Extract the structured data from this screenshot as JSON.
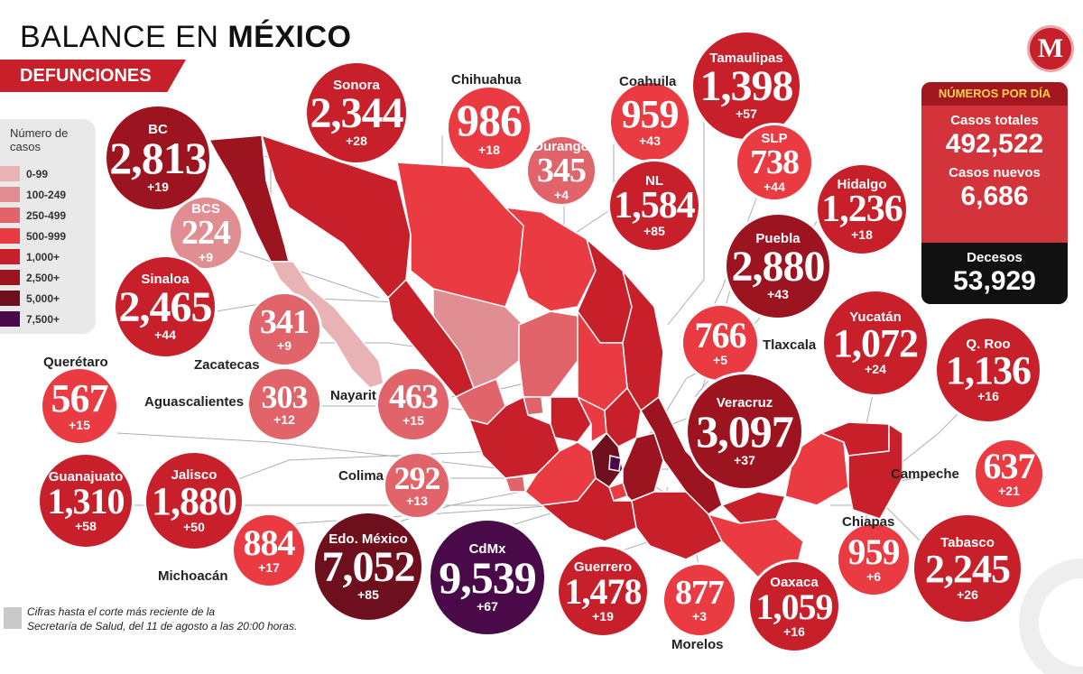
{
  "header": {
    "title_part1": "BALANCE EN ",
    "title_part2": "MÉXICO",
    "subtitle": "DEFUNCIONES",
    "logo_letter": "M"
  },
  "legend": {
    "title": "Número de casos",
    "items": [
      {
        "label": "0-99",
        "color": "#e9b3b5"
      },
      {
        "label": "100-249",
        "color": "#e08e91"
      },
      {
        "label": "250-499",
        "color": "#e0646a"
      },
      {
        "label": "500-999",
        "color": "#ea3a42"
      },
      {
        "label": "1,000+",
        "color": "#c8202a"
      },
      {
        "label": "2,500+",
        "color": "#9b1420"
      },
      {
        "label": "5,000+",
        "color": "#6e0f1d"
      },
      {
        "label": "7,500+",
        "color": "#4a0a4a"
      }
    ]
  },
  "stats": {
    "header": "NÚMEROS POR DÍA",
    "total_label": "Casos totales",
    "total_value": "492,522",
    "new_label": "Casos nuevos",
    "new_value": "6,686",
    "deaths_label": "Decesos",
    "deaths_value": "53,929"
  },
  "states": [
    {
      "name": "BC",
      "deaths": "2,813",
      "delta": "+19",
      "color": "#9b1420"
    },
    {
      "name": "Sonora",
      "deaths": "2,344",
      "delta": "+28",
      "color": "#c8202a"
    },
    {
      "name": "Chihuahua",
      "deaths": "986",
      "delta": "+18",
      "color": "#ea3a42"
    },
    {
      "name": "Coahuila",
      "deaths": "959",
      "delta": "+43",
      "color": "#ea3a42"
    },
    {
      "name": "Tamaulipas",
      "deaths": "1,398",
      "delta": "+57",
      "color": "#c8202a"
    },
    {
      "name": "Durango",
      "deaths": "345",
      "delta": "+4",
      "color": "#e0646a"
    },
    {
      "name": "NL",
      "deaths": "1,584",
      "delta": "+85",
      "color": "#c8202a"
    },
    {
      "name": "SLP",
      "deaths": "738",
      "delta": "+44",
      "color": "#ea3a42"
    },
    {
      "name": "Hidalgo",
      "deaths": "1,236",
      "delta": "+18",
      "color": "#c8202a"
    },
    {
      "name": "Puebla",
      "deaths": "2,880",
      "delta": "+43",
      "color": "#9b1420"
    },
    {
      "name": "BCS",
      "deaths": "224",
      "delta": "+9",
      "color": "#e08e91"
    },
    {
      "name": "Sinaloa",
      "deaths": "2,465",
      "delta": "+44",
      "color": "#c8202a"
    },
    {
      "name": "Zacatecas",
      "deaths": "341",
      "delta": "+9",
      "color": "#e0646a"
    },
    {
      "name": "Aguascalientes",
      "deaths": "303",
      "delta": "+12",
      "color": "#e0646a"
    },
    {
      "name": "Nayarit",
      "deaths": "463",
      "delta": "+15",
      "color": "#e0646a"
    },
    {
      "name": "Querétaro",
      "deaths": "567",
      "delta": "+15",
      "color": "#ea3a42"
    },
    {
      "name": "Tlaxcala",
      "deaths": "766",
      "delta": "+5",
      "color": "#ea3a42"
    },
    {
      "name": "Yucatán",
      "deaths": "1,072",
      "delta": "+24",
      "color": "#c8202a"
    },
    {
      "name": "Q. Roo",
      "deaths": "1,136",
      "delta": "+16",
      "color": "#c8202a"
    },
    {
      "name": "Veracruz",
      "deaths": "3,097",
      "delta": "+37",
      "color": "#9b1420"
    },
    {
      "name": "Colima",
      "deaths": "292",
      "delta": "+13",
      "color": "#e0646a"
    },
    {
      "name": "Guanajuato",
      "deaths": "1,310",
      "delta": "+58",
      "color": "#c8202a"
    },
    {
      "name": "Jalisco",
      "deaths": "1,880",
      "delta": "+50",
      "color": "#c8202a"
    },
    {
      "name": "Campeche",
      "deaths": "637",
      "delta": "+21",
      "color": "#ea3a42"
    },
    {
      "name": "Michoacán",
      "deaths": "884",
      "delta": "+17",
      "color": "#ea3a42"
    },
    {
      "name": "Edo. México",
      "deaths": "7,052",
      "delta": "+85",
      "color": "#6e0f1d"
    },
    {
      "name": "CdMx",
      "deaths": "9,539",
      "delta": "+67",
      "color": "#4a0a4a"
    },
    {
      "name": "Guerrero",
      "deaths": "1,478",
      "delta": "+19",
      "color": "#c8202a"
    },
    {
      "name": "Morelos",
      "deaths": "877",
      "delta": "+3",
      "color": "#ea3a42"
    },
    {
      "name": "Oaxaca",
      "deaths": "1,059",
      "delta": "+16",
      "color": "#c8202a"
    },
    {
      "name": "Chiapas",
      "deaths": "959",
      "delta": "+6",
      "color": "#ea3a42"
    },
    {
      "name": "Tabasco",
      "deaths": "2,245",
      "delta": "+26",
      "color": "#c8202a"
    }
  ],
  "footnote_line1": "Cifras hasta el corte más reciente de la",
  "footnote_line2": "Secretaría de Salud, del 11 de agosto a las 20:00 horas."
}
